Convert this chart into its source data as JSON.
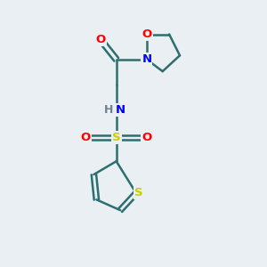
{
  "bg_color": "#eaeff3",
  "bond_color": "#2d6e6e",
  "atom_colors": {
    "O": "#ff0000",
    "N": "#0000ff",
    "S_thiophene": "#cccc00",
    "S_sulfonyl": "#cccc00",
    "H": "#708090",
    "C": "#2d6e6e"
  }
}
